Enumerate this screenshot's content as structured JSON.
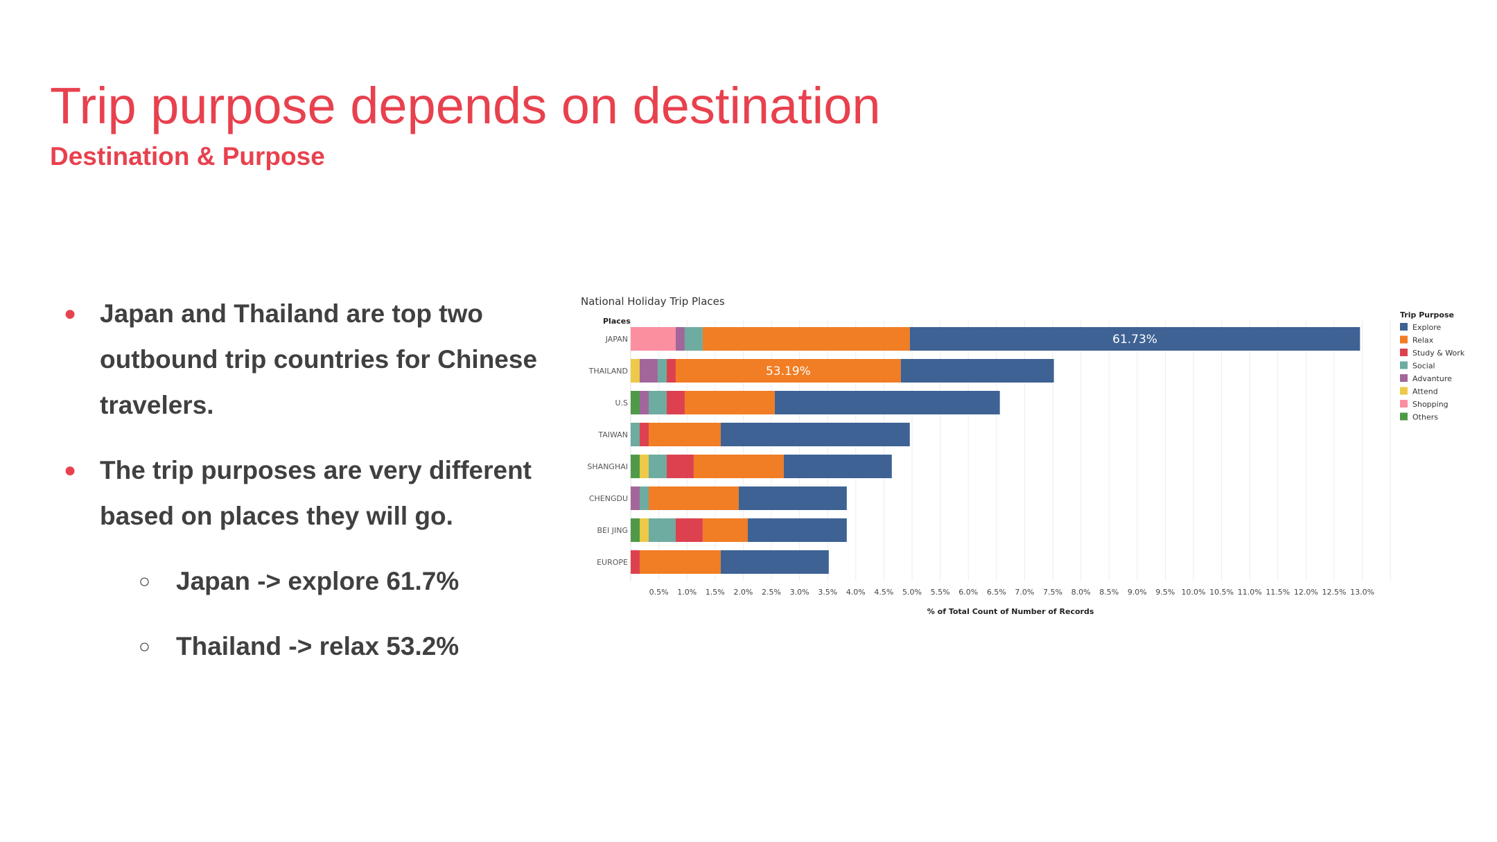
{
  "slide": {
    "title": "Trip purpose depends on destination",
    "subtitle": "Destination & Purpose",
    "accent_color": "#e8414e"
  },
  "bullets": [
    {
      "text": "Japan and Thailand are top two outbound trip countries for Chinese travelers."
    },
    {
      "text": "The trip purposes are very different based on places they will go."
    }
  ],
  "sub_bullets": [
    {
      "text": "Japan -> explore 61.7%"
    },
    {
      "text": "Thailand -> relax 53.2%"
    }
  ],
  "chart_data": {
    "type": "bar",
    "orientation": "horizontal",
    "stacked": true,
    "title": "National Holiday Trip Places",
    "ylabel": "Places",
    "xlabel": "% of Total Count of Number of Records",
    "xlim": [
      0,
      13.5
    ],
    "x_ticks": [
      "0.5%",
      "1.0%",
      "1.5%",
      "2.0%",
      "2.5%",
      "3.0%",
      "3.5%",
      "4.0%",
      "4.5%",
      "5.0%",
      "5.5%",
      "6.0%",
      "6.5%",
      "7.0%",
      "7.5%",
      "8.0%",
      "8.5%",
      "9.0%",
      "9.5%",
      "10.0%",
      "10.5%",
      "11.0%",
      "11.5%",
      "12.0%",
      "12.5%",
      "13.0%"
    ],
    "grid": true,
    "legend": {
      "title": "Trip Purpose",
      "placement": "right"
    },
    "categories": [
      "JAPAN",
      "THAILAND",
      "U.S",
      "TAIWAN",
      "SHANGHAI",
      "CHENGDU",
      "BEI JING",
      "EUROPE"
    ],
    "series": [
      {
        "name": "Others",
        "color": "#4f9a48",
        "values": [
          0,
          0,
          0.16,
          0,
          0.16,
          0,
          0.16,
          0
        ]
      },
      {
        "name": "Attend",
        "color": "#edc948",
        "values": [
          0,
          0.16,
          0,
          0,
          0.16,
          0,
          0.16,
          0
        ]
      },
      {
        "name": "Shopping",
        "color": "#fb8fa0",
        "values": [
          0.8,
          0,
          0,
          0,
          0,
          0,
          0,
          0
        ]
      },
      {
        "name": "Advanture",
        "color": "#a2669a",
        "values": [
          0.16,
          0.32,
          0.16,
          0,
          0,
          0.16,
          0,
          0
        ]
      },
      {
        "name": "Social",
        "color": "#6eaba0",
        "values": [
          0.32,
          0.16,
          0.32,
          0.16,
          0.32,
          0.16,
          0.48,
          0
        ]
      },
      {
        "name": "Study & Work",
        "color": "#dd4150",
        "values": [
          0,
          0.16,
          0.32,
          0.16,
          0.48,
          0,
          0.48,
          0.16
        ]
      },
      {
        "name": "Relax",
        "color": "#f17d24",
        "values": [
          3.68,
          4.0,
          1.6,
          1.28,
          1.6,
          1.6,
          0.8,
          1.44
        ]
      },
      {
        "name": "Explore",
        "color": "#3e6294",
        "values": [
          8.0,
          2.72,
          4.0,
          3.36,
          1.92,
          1.92,
          1.76,
          1.92
        ]
      }
    ],
    "annotations": [
      {
        "category": "JAPAN",
        "series": "Explore",
        "text": "61.73%"
      },
      {
        "category": "THAILAND",
        "series": "Relax",
        "text": "53.19%"
      }
    ]
  }
}
